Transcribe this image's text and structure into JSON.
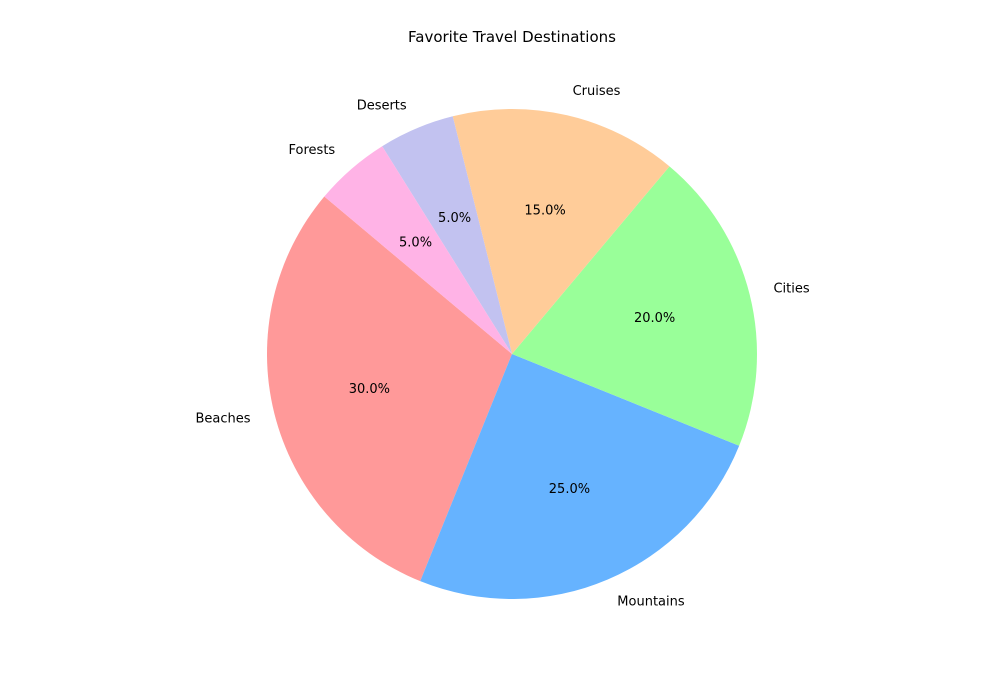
{
  "chart_data": {
    "type": "pie",
    "title": "Favorite Travel Destinations",
    "categories": [
      "Beaches",
      "Mountains",
      "Cities",
      "Cruises",
      "Deserts",
      "Forests"
    ],
    "values": [
      30,
      25,
      20,
      15,
      5,
      5
    ],
    "percent_labels": [
      "30.0%",
      "25.0%",
      "20.0%",
      "15.0%",
      "5.0%",
      "5.0%"
    ],
    "colors": [
      "#ff9999",
      "#66b3ff",
      "#99ff99",
      "#ffcc99",
      "#c2c2f0",
      "#ffb3e6"
    ],
    "start_angle_deg": 140,
    "direction": "counterclockwise",
    "legend": "none"
  }
}
